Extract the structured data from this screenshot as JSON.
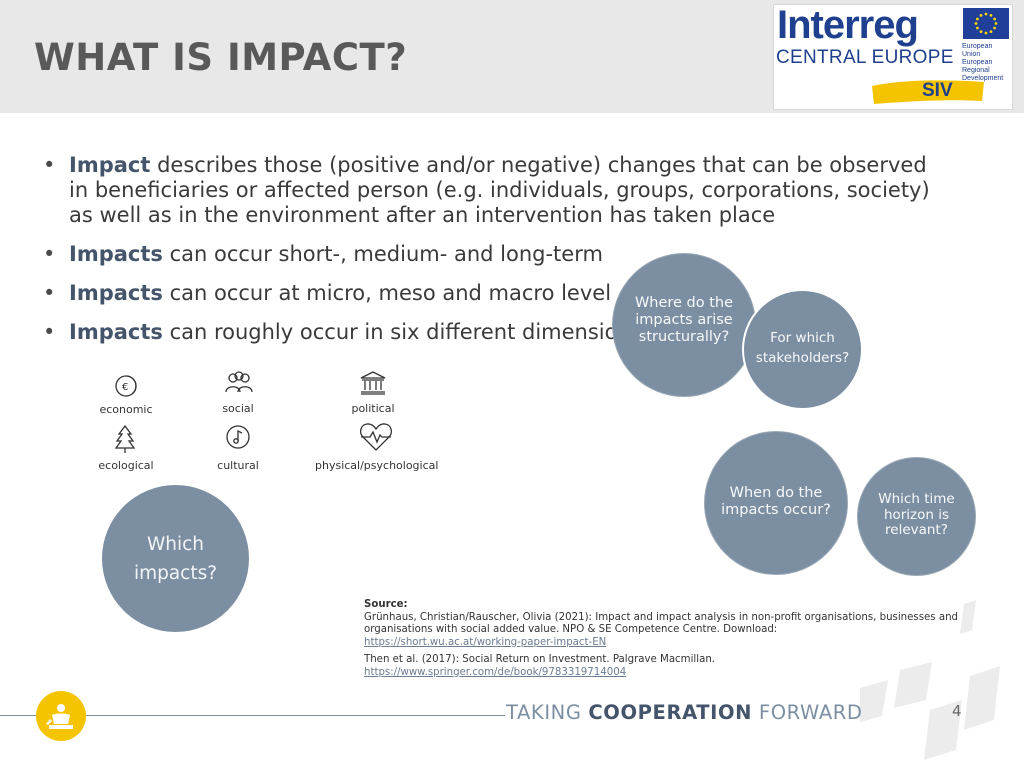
{
  "header": {
    "title": "WHAT IS IMPACT?"
  },
  "logo": {
    "name": "Interreg",
    "region": "CENTRAL EUROPE",
    "eu_label": [
      "European Union",
      "European Regional",
      "Development Fund"
    ],
    "project": "SIV",
    "colors": {
      "brand_blue": "#1f3f8f",
      "yellow": "#f5c400"
    }
  },
  "bullets": [
    {
      "bold": "Impact",
      "text": " describes those (positive and/or negative) changes that can be observed in beneficiaries or affected person (e.g. individuals, groups, corporations, society) as well as in the environment after an intervention has taken place"
    },
    {
      "bold": "Impacts",
      "text": " can occur short-, medium- and long-term"
    },
    {
      "bold": "Impacts",
      "text": " can occur at micro, meso and macro level"
    },
    {
      "bold": "Impacts",
      "text": " can roughly occur in six different dimensions"
    }
  ],
  "dimensions": [
    {
      "label": "economic",
      "icon": "euro-coin-icon"
    },
    {
      "label": "social",
      "icon": "people-group-icon"
    },
    {
      "label": "political",
      "icon": "institution-building-icon"
    },
    {
      "label": "ecological",
      "icon": "tree-icon"
    },
    {
      "label": "cultural",
      "icon": "music-note-icon"
    },
    {
      "label": "physical/psychological",
      "icon": "heartbeat-icon"
    }
  ],
  "circles": {
    "which_impacts": [
      "Which",
      "impacts?"
    ],
    "where": [
      "Where do the",
      "impacts arise",
      "structurally?"
    ],
    "stakeholders": [
      "For which",
      "stakeholders?"
    ],
    "when": [
      "When do the",
      "impacts occur?"
    ],
    "time_horizon": [
      "Which time",
      "horizon is",
      "relevant?"
    ],
    "color": "#7c8fa2"
  },
  "source": {
    "label": "Source:",
    "ref1": "Grünhaus, Christian/Rauscher, Olivia (2021): Impact and impact analysis in non-profit organisations, businesses and organisations with social added value. NPO & SE Competence Centre. Download:",
    "ref1_link": "https://short.wu.ac.at/working-paper-impact-EN",
    "ref2": "Then et al. (2017): Social Return on Investment. Palgrave Macmillan.",
    "ref2_link": "https://www.springer.com/de/book/9783319714004"
  },
  "footer": {
    "tag_prefix": "TAKING ",
    "tag_bold": "COOPERATION",
    "tag_suffix": " FORWARD",
    "page_number": "4"
  }
}
